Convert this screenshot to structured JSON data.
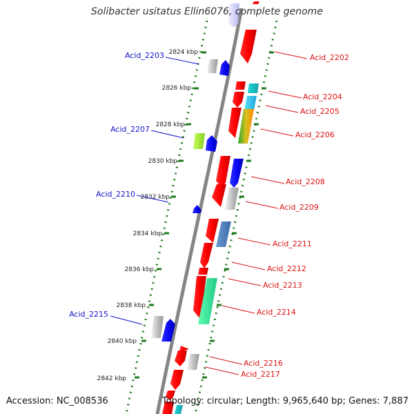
{
  "header": {
    "title": "Solibacter usitatus Ellin6076, complete genome"
  },
  "footer": {
    "accession": "Accession: NC_008536",
    "summary": "Topology: circular; Length: 9,965,640 bp; Genes: 7,887"
  },
  "colors": {
    "backbone": "#7a7a7a",
    "tick_green": "#1e7a1e",
    "label_blue": "#1010cc",
    "label_red": "#dd1111",
    "feature_red": "#ff0000",
    "feature_blue": "#1515f0"
  },
  "map": {
    "kbp_ticks": [
      "2824 kbp",
      "2826 kbp",
      "2828 kbp",
      "2830 kbp",
      "2832 kbp",
      "2834 kbp",
      "2836 kbp",
      "2838 kbp",
      "2840 kbp",
      "2842 kbp"
    ],
    "left_labels": [
      "Acid_2203",
      "Acid_2207",
      "Acid_2210",
      "Acid_2215"
    ],
    "right_labels": [
      "Acid_2202",
      "Acid_2204",
      "Acid_2205",
      "Acid_2206",
      "Acid_2208",
      "Acid_2209",
      "Acid_2211",
      "Acid_2212",
      "Acid_2213",
      "Acid_2214",
      "Acid_2216",
      "Acid_2217"
    ]
  }
}
